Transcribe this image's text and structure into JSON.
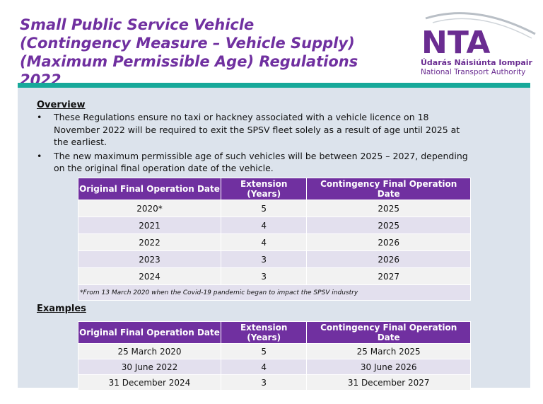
{
  "header": {
    "title": "Small Public Service Vehicle (Contingency Measure – Vehicle Supply) (Maximum Permissible Age) Regulations 2022"
  },
  "logo": {
    "abbr": "NTA",
    "irish": "Údarás Náisiúnta Iompair",
    "english": "National Transport Authority"
  },
  "overview": {
    "heading": "Overview",
    "bullets": [
      "These Regulations ensure no taxi or hackney associated with a vehicle licence on 18 November 2022 will be required to exit the SPSV fleet solely as a result of age until 2025 at the earliest.",
      "The new maximum permissible age of such vehicles will be between 2025 – 2027, depending on the original final operation date of the vehicle."
    ]
  },
  "table1": {
    "columns": [
      "Original Final Operation Date",
      "Extension (Years)",
      "Contingency Final Operation Date"
    ],
    "rows": [
      [
        "2020*",
        "5",
        "2025"
      ],
      [
        "2021",
        "4",
        "2025"
      ],
      [
        "2022",
        "4",
        "2026"
      ],
      [
        "2023",
        "3",
        "2026"
      ],
      [
        "2024",
        "3",
        "2027"
      ]
    ],
    "footnote": "*From 13 March 2020 when the Covid-19 pandemic began to impact the SPSV industry"
  },
  "examples": {
    "heading": "Examples"
  },
  "table2": {
    "columns": [
      "Original Final Operation Date",
      "Extension (Years)",
      "Contingency Final Operation Date"
    ],
    "rows": [
      [
        "25 March 2020",
        "5",
        "25 March 2025"
      ],
      [
        "30 June 2022",
        "4",
        "30 June 2026"
      ],
      [
        "31 December 2024",
        "3",
        "31 December 2027"
      ]
    ]
  }
}
